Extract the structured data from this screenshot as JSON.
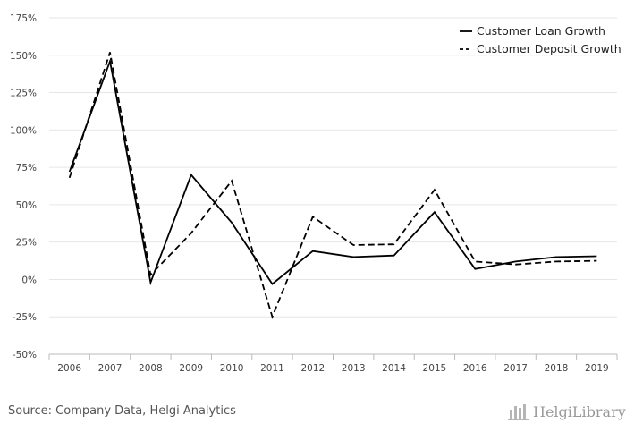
{
  "chart_data": {
    "type": "line",
    "title": "",
    "xlabel": "",
    "ylabel": "",
    "categories": [
      "2006",
      "2007",
      "2008",
      "2009",
      "2010",
      "2011",
      "2012",
      "2013",
      "2014",
      "2015",
      "2016",
      "2017",
      "2018",
      "2019"
    ],
    "series": [
      {
        "name": "Customer Loan Growth",
        "style": "solid",
        "values": [
          72,
          146,
          -2,
          70,
          38,
          -3,
          19,
          15,
          16,
          45,
          7,
          12,
          15,
          15.5
        ]
      },
      {
        "name": "Customer Deposit Growth",
        "style": "dashed",
        "values": [
          68,
          152,
          3,
          31,
          66,
          -25,
          42,
          23,
          23.5,
          60,
          12,
          10,
          12,
          12.5
        ]
      }
    ],
    "ylim": [
      -50,
      175
    ],
    "yticks": [
      -50,
      -25,
      0,
      25,
      50,
      75,
      100,
      125,
      150,
      175
    ],
    "ytick_labels": [
      "-50%",
      "-25%",
      "0%",
      "25%",
      "50%",
      "75%",
      "100%",
      "125%",
      "150%",
      "175%"
    ],
    "grid": true,
    "legend_position": "top-right",
    "line_color": "#000000"
  },
  "footer": {
    "source": "Source: Company Data, Helgi Analytics",
    "brand": "HelgiLibrary"
  }
}
